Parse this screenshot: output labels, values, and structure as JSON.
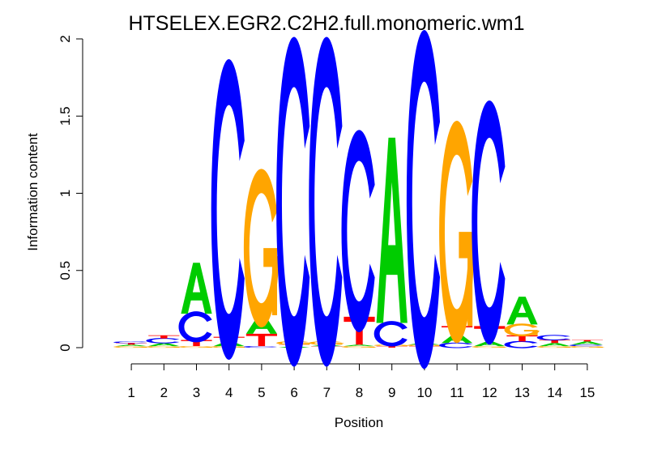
{
  "chart_data": {
    "type": "sequence-logo",
    "title": "HTSELEX.EGR2.C2H2.full.monomeric.wm1",
    "xlabel": "Position",
    "ylabel": "Information content",
    "ylim": [
      0,
      2
    ],
    "yticks": [
      {
        "value": 0,
        "label": "0"
      },
      {
        "value": 0.5,
        "label": "0.5"
      },
      {
        "value": 1,
        "label": "1"
      },
      {
        "value": 1.5,
        "label": "1.5"
      },
      {
        "value": 2,
        "label": "2"
      }
    ],
    "positions": [
      "1",
      "2",
      "3",
      "4",
      "5",
      "6",
      "7",
      "8",
      "9",
      "10",
      "11",
      "12",
      "13",
      "14",
      "15"
    ],
    "colors": {
      "A": "#00cc00",
      "C": "#0000ff",
      "G": "#ffa500",
      "T": "#ff0000"
    },
    "stacks": [
      [
        {
          "b": "G",
          "h": 0.01
        },
        {
          "b": "A",
          "h": 0.01
        },
        {
          "b": "T",
          "h": 0.01
        },
        {
          "b": "C",
          "h": 0.01
        }
      ],
      [
        {
          "b": "G",
          "h": 0.01
        },
        {
          "b": "A",
          "h": 0.02
        },
        {
          "b": "C",
          "h": 0.03
        },
        {
          "b": "T",
          "h": 0.02
        }
      ],
      [
        {
          "b": "G",
          "h": 0.01
        },
        {
          "b": "T",
          "h": 0.04
        },
        {
          "b": "C",
          "h": 0.17
        },
        {
          "b": "A",
          "h": 0.33
        }
      ],
      [
        {
          "b": "G",
          "h": 0.01
        },
        {
          "b": "A",
          "h": 0.03
        },
        {
          "b": "T",
          "h": 0.03
        },
        {
          "b": "C",
          "h": 1.65
        }
      ],
      [
        {
          "b": "C",
          "h": 0.01
        },
        {
          "b": "T",
          "h": 0.08
        },
        {
          "b": "A",
          "h": 0.12
        },
        {
          "b": "G",
          "h": 0.87
        }
      ],
      [
        {
          "b": "A",
          "h": 0.01
        },
        {
          "b": "T",
          "h": 0.01
        },
        {
          "b": "G",
          "h": 0.02
        },
        {
          "b": "C",
          "h": 1.81
        }
      ],
      [
        {
          "b": "T",
          "h": 0.01
        },
        {
          "b": "A",
          "h": 0.01
        },
        {
          "b": "G",
          "h": 0.02
        },
        {
          "b": "C",
          "h": 1.81
        }
      ],
      [
        {
          "b": "G",
          "h": 0.01
        },
        {
          "b": "A",
          "h": 0.01
        },
        {
          "b": "T",
          "h": 0.18
        },
        {
          "b": "C",
          "h": 1.11
        }
      ],
      [
        {
          "b": "T",
          "h": 0.01
        },
        {
          "b": "G",
          "h": 0.01
        },
        {
          "b": "C",
          "h": 0.14
        },
        {
          "b": "A",
          "h": 1.2
        }
      ],
      [
        {
          "b": "T",
          "h": 0.01
        },
        {
          "b": "G",
          "h": 0.01
        },
        {
          "b": "A",
          "h": 0.01
        },
        {
          "b": "C",
          "h": 1.86
        }
      ],
      [
        {
          "b": "C",
          "h": 0.03
        },
        {
          "b": "A",
          "h": 0.06
        },
        {
          "b": "T",
          "h": 0.05
        },
        {
          "b": "G",
          "h": 1.22
        }
      ],
      [
        {
          "b": "G",
          "h": 0.01
        },
        {
          "b": "A",
          "h": 0.03
        },
        {
          "b": "T",
          "h": 0.1
        },
        {
          "b": "C",
          "h": 1.34
        }
      ],
      [
        {
          "b": "C",
          "h": 0.04
        },
        {
          "b": "T",
          "h": 0.04
        },
        {
          "b": "G",
          "h": 0.07
        },
        {
          "b": "A",
          "h": 0.18
        }
      ],
      [
        {
          "b": "G",
          "h": 0.01
        },
        {
          "b": "A",
          "h": 0.02
        },
        {
          "b": "T",
          "h": 0.02
        },
        {
          "b": "C",
          "h": 0.03
        }
      ],
      [
        {
          "b": "G",
          "h": 0.01
        },
        {
          "b": "C",
          "h": 0.01
        },
        {
          "b": "A",
          "h": 0.02
        },
        {
          "b": "T",
          "h": 0.01
        }
      ]
    ]
  }
}
